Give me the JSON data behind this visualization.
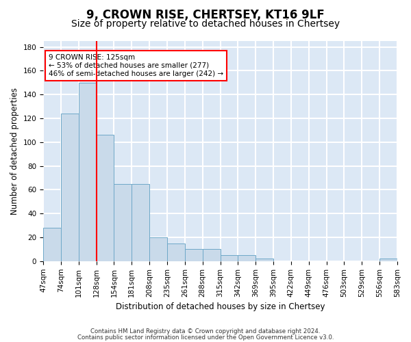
{
  "title": "9, CROWN RISE, CHERTSEY, KT16 9LF",
  "subtitle": "Size of property relative to detached houses in Chertsey",
  "xlabel": "Distribution of detached houses by size in Chertsey",
  "ylabel": "Number of detached properties",
  "bins": [
    "47sqm",
    "74sqm",
    "101sqm",
    "128sqm",
    "154sqm",
    "181sqm",
    "208sqm",
    "235sqm",
    "261sqm",
    "288sqm",
    "315sqm",
    "342sqm",
    "369sqm",
    "395sqm",
    "422sqm",
    "449sqm",
    "476sqm",
    "503sqm",
    "529sqm",
    "556sqm",
    "583sqm"
  ],
  "values": [
    28,
    124,
    150,
    106,
    65,
    65,
    20,
    15,
    10,
    10,
    5,
    5,
    2,
    0,
    0,
    0,
    0,
    0,
    0,
    2
  ],
  "bar_color": "#c9daea",
  "bar_edge_color": "#6ea8c8",
  "annotation_line1": "9 CROWN RISE: 125sqm",
  "annotation_line2": "← 53% of detached houses are smaller (277)",
  "annotation_line3": "46% of semi-detached houses are larger (242) →",
  "annotation_box_color": "white",
  "annotation_box_edge_color": "red",
  "vline_color": "red",
  "ylim": [
    0,
    185
  ],
  "yticks": [
    0,
    20,
    40,
    60,
    80,
    100,
    120,
    140,
    160,
    180
  ],
  "background_color": "#dce8f5",
  "grid_color": "white",
  "footer_line1": "Contains HM Land Registry data © Crown copyright and database right 2024.",
  "footer_line2": "Contains public sector information licensed under the Open Government Licence v3.0.",
  "title_fontsize": 12,
  "subtitle_fontsize": 10,
  "axis_label_fontsize": 8.5,
  "tick_fontsize": 7.5
}
